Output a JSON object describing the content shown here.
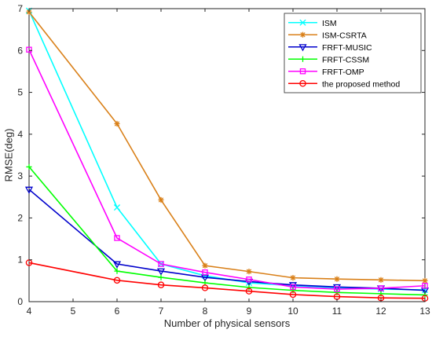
{
  "chart_data": {
    "type": "line",
    "title": "",
    "xlabel": "Number of physical sensors",
    "ylabel": "RMSE(deg)",
    "xlim": [
      4,
      13
    ],
    "ylim": [
      0,
      7
    ],
    "xticks": [
      4,
      5,
      6,
      7,
      8,
      9,
      10,
      11,
      12,
      13
    ],
    "yticks": [
      0,
      1,
      2,
      3,
      4,
      5,
      6,
      7
    ],
    "grid": false,
    "legend_position": "top-right",
    "x": [
      4,
      6,
      7,
      8,
      9,
      10,
      11,
      12,
      13
    ],
    "series": [
      {
        "name": "ISM",
        "color": "#00ffff",
        "marker": "x",
        "values": [
          6.95,
          2.25,
          0.9,
          0.62,
          0.45,
          0.38,
          0.33,
          0.3,
          0.28
        ]
      },
      {
        "name": "ISM-CSRTA",
        "color": "#d98019",
        "marker": "asterisk",
        "values": [
          6.92,
          4.25,
          2.43,
          0.86,
          0.72,
          0.57,
          0.54,
          0.52,
          0.5
        ]
      },
      {
        "name": "FRFT-MUSIC",
        "color": "#0000cc",
        "marker": "triangle-down",
        "values": [
          2.68,
          0.9,
          0.73,
          0.58,
          0.48,
          0.4,
          0.35,
          0.32,
          0.27
        ]
      },
      {
        "name": "FRFT-CSSM",
        "color": "#00ff00",
        "marker": "plus",
        "values": [
          3.22,
          0.73,
          0.58,
          0.45,
          0.34,
          0.27,
          0.22,
          0.19,
          0.16
        ]
      },
      {
        "name": "FRFT-OMP",
        "color": "#ff00ff",
        "marker": "square",
        "values": [
          6.02,
          1.52,
          0.9,
          0.7,
          0.53,
          0.35,
          0.3,
          0.32,
          0.38
        ]
      },
      {
        "name": "the proposed method",
        "color": "#ff0000",
        "marker": "circle",
        "values": [
          0.93,
          0.51,
          0.4,
          0.33,
          0.25,
          0.17,
          0.12,
          0.09,
          0.08
        ]
      }
    ]
  }
}
